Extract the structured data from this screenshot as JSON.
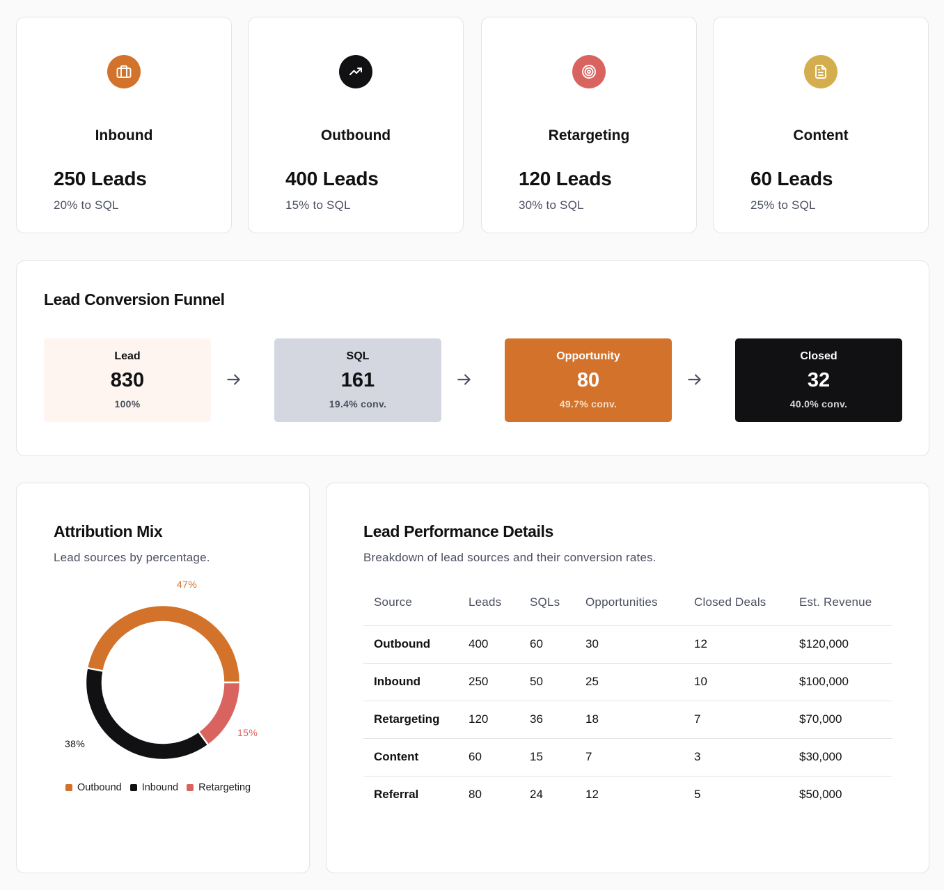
{
  "colors": {
    "orange": "#d2722b",
    "black": "#111114",
    "coral": "#d9645f",
    "gold": "#d4ad4f",
    "lead_bg": "#fef5f0",
    "sql_bg": "#d4d7e0"
  },
  "stats": [
    {
      "title": "Inbound",
      "value": "250 Leads",
      "sub": "20% to SQL",
      "icon": "briefcase-icon",
      "color": "#d2722b"
    },
    {
      "title": "Outbound",
      "value": "400 Leads",
      "sub": "15% to SQL",
      "icon": "trending-up-icon",
      "color": "#111114"
    },
    {
      "title": "Retargeting",
      "value": "120 Leads",
      "sub": "30% to SQL",
      "icon": "target-icon",
      "color": "#d9645f"
    },
    {
      "title": "Content",
      "value": "60 Leads",
      "sub": "25% to SQL",
      "icon": "document-icon",
      "color": "#d4ad4f"
    }
  ],
  "funnel": {
    "title": "Lead Conversion Funnel",
    "stages": [
      {
        "label": "Lead",
        "value": "830",
        "rate": "100%"
      },
      {
        "label": "SQL",
        "value": "161",
        "rate": "19.4% conv."
      },
      {
        "label": "Opportunity",
        "value": "80",
        "rate": "49.7% conv."
      },
      {
        "label": "Closed",
        "value": "32",
        "rate": "40.0% conv."
      }
    ]
  },
  "attribution": {
    "title": "Attribution Mix",
    "subtitle": "Lead sources by percentage.",
    "labels": {
      "outbound": "47%",
      "inbound": "38%",
      "retargeting": "15%"
    },
    "legend": [
      "Outbound",
      "Inbound",
      "Retargeting"
    ]
  },
  "chart_data": {
    "type": "pie",
    "categories": [
      "Outbound",
      "Inbound",
      "Retargeting"
    ],
    "values": [
      47,
      38,
      15
    ],
    "colors": [
      "#d2722b",
      "#111114",
      "#d9645f"
    ],
    "title": "Attribution Mix",
    "subtitle": "Lead sources by percentage.",
    "donut": true,
    "legend_position": "bottom"
  },
  "performance": {
    "title": "Lead Performance Details",
    "subtitle": "Breakdown of lead sources and their conversion rates.",
    "columns": [
      "Source",
      "Leads",
      "SQLs",
      "Opportunities",
      "Closed Deals",
      "Est. Revenue"
    ],
    "rows": [
      [
        "Outbound",
        "400",
        "60",
        "30",
        "12",
        "$120,000"
      ],
      [
        "Inbound",
        "250",
        "50",
        "25",
        "10",
        "$100,000"
      ],
      [
        "Retargeting",
        "120",
        "36",
        "18",
        "7",
        "$70,000"
      ],
      [
        "Content",
        "60",
        "15",
        "7",
        "3",
        "$30,000"
      ],
      [
        "Referral",
        "80",
        "24",
        "12",
        "5",
        "$50,000"
      ]
    ]
  }
}
